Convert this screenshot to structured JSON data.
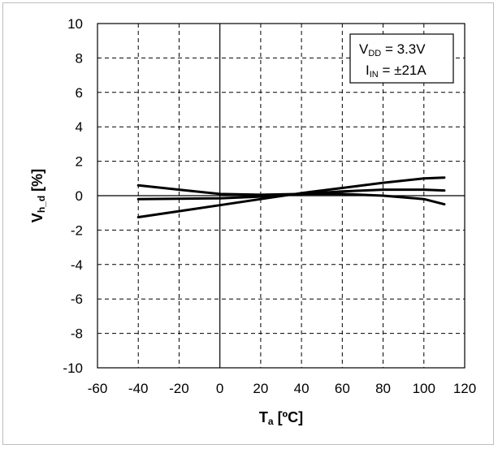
{
  "chart_data": {
    "type": "line",
    "xlabel": {
      "main": "T",
      "sub": "a",
      "unit": " [ºC]"
    },
    "ylabel": {
      "main": "V",
      "sub": "h_d",
      "unit": " [%]"
    },
    "xlim": [
      -60,
      120
    ],
    "ylim": [
      -10,
      10
    ],
    "xticks": [
      -60,
      -40,
      -20,
      0,
      20,
      40,
      60,
      80,
      100,
      120
    ],
    "yticks": [
      -10,
      -8,
      -6,
      -4,
      -2,
      0,
      2,
      4,
      6,
      8,
      10
    ],
    "grid": true,
    "grid_style": "dashed",
    "legend_placement": "top-right",
    "annotation": [
      {
        "main": "V",
        "sub": "DD",
        "rest": " = 3.3V"
      },
      {
        "main": "I",
        "sub": "IN",
        "rest": " = ±21A"
      }
    ],
    "colors": {
      "line": "#000000",
      "grid": "#000000",
      "frame_border": "#bdbdbd"
    },
    "series": [
      {
        "x": [
          -40,
          -20,
          0,
          20,
          40,
          60,
          80,
          100,
          110
        ],
        "y": [
          0.6,
          0.35,
          0.1,
          0.05,
          0.1,
          0.1,
          0.0,
          -0.2,
          -0.5
        ]
      },
      {
        "x": [
          -40,
          -20,
          0,
          20,
          40,
          60,
          80,
          100,
          110
        ],
        "y": [
          -1.25,
          -0.9,
          -0.55,
          -0.2,
          0.15,
          0.45,
          0.75,
          1.0,
          1.05
        ]
      },
      {
        "x": [
          -40,
          -20,
          0,
          20,
          40,
          60,
          80,
          100,
          110
        ],
        "y": [
          -0.2,
          -0.18,
          -0.15,
          -0.05,
          0.1,
          0.25,
          0.35,
          0.35,
          0.3
        ]
      }
    ]
  }
}
